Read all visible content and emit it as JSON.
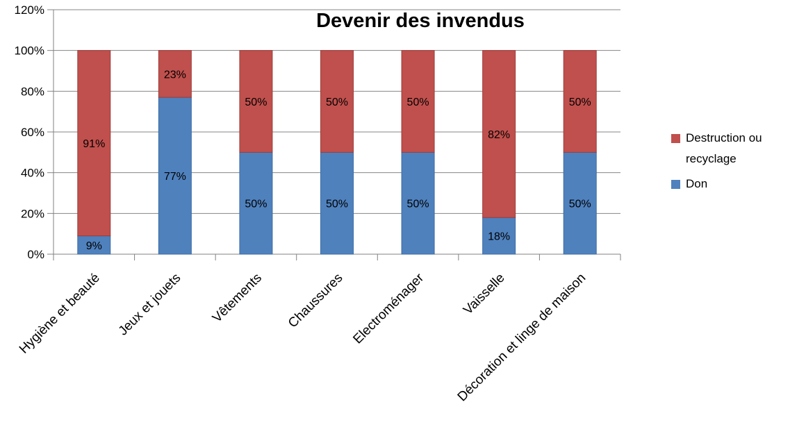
{
  "chart_data": {
    "type": "bar",
    "stacked": true,
    "title": "Devenir des invendus",
    "categories": [
      "Hygiène et beauté",
      "Jeux et jouets",
      "Vêtements",
      "Chaussures",
      "Electroménager",
      "Vaisselle",
      "Décoration et linge de maison"
    ],
    "series": [
      {
        "name": "Don",
        "color": "#4F81BD",
        "border_color": "#3D6DA3",
        "values": [
          9,
          77,
          50,
          50,
          50,
          18,
          50
        ]
      },
      {
        "name": "Destruction ou recyclage",
        "color": "#C0504D",
        "border_color": "#9C3D3B",
        "values": [
          91,
          23,
          50,
          50,
          50,
          82,
          50
        ]
      }
    ],
    "data_label_suffix": "%",
    "y_ticks": [
      "0%",
      "20%",
      "40%",
      "60%",
      "80%",
      "100%",
      "120%"
    ],
    "ylim": [
      0,
      120
    ],
    "grid": true,
    "legend_position": "right",
    "legend": [
      {
        "label": "Destruction ou recyclage",
        "color": "#C0504D"
      },
      {
        "label": "Don",
        "color": "#4F81BD"
      }
    ],
    "style": {
      "background": "#FFFFFF",
      "grid_color": "#848484",
      "axis_color": "#808080",
      "text_color": "#000000"
    }
  }
}
